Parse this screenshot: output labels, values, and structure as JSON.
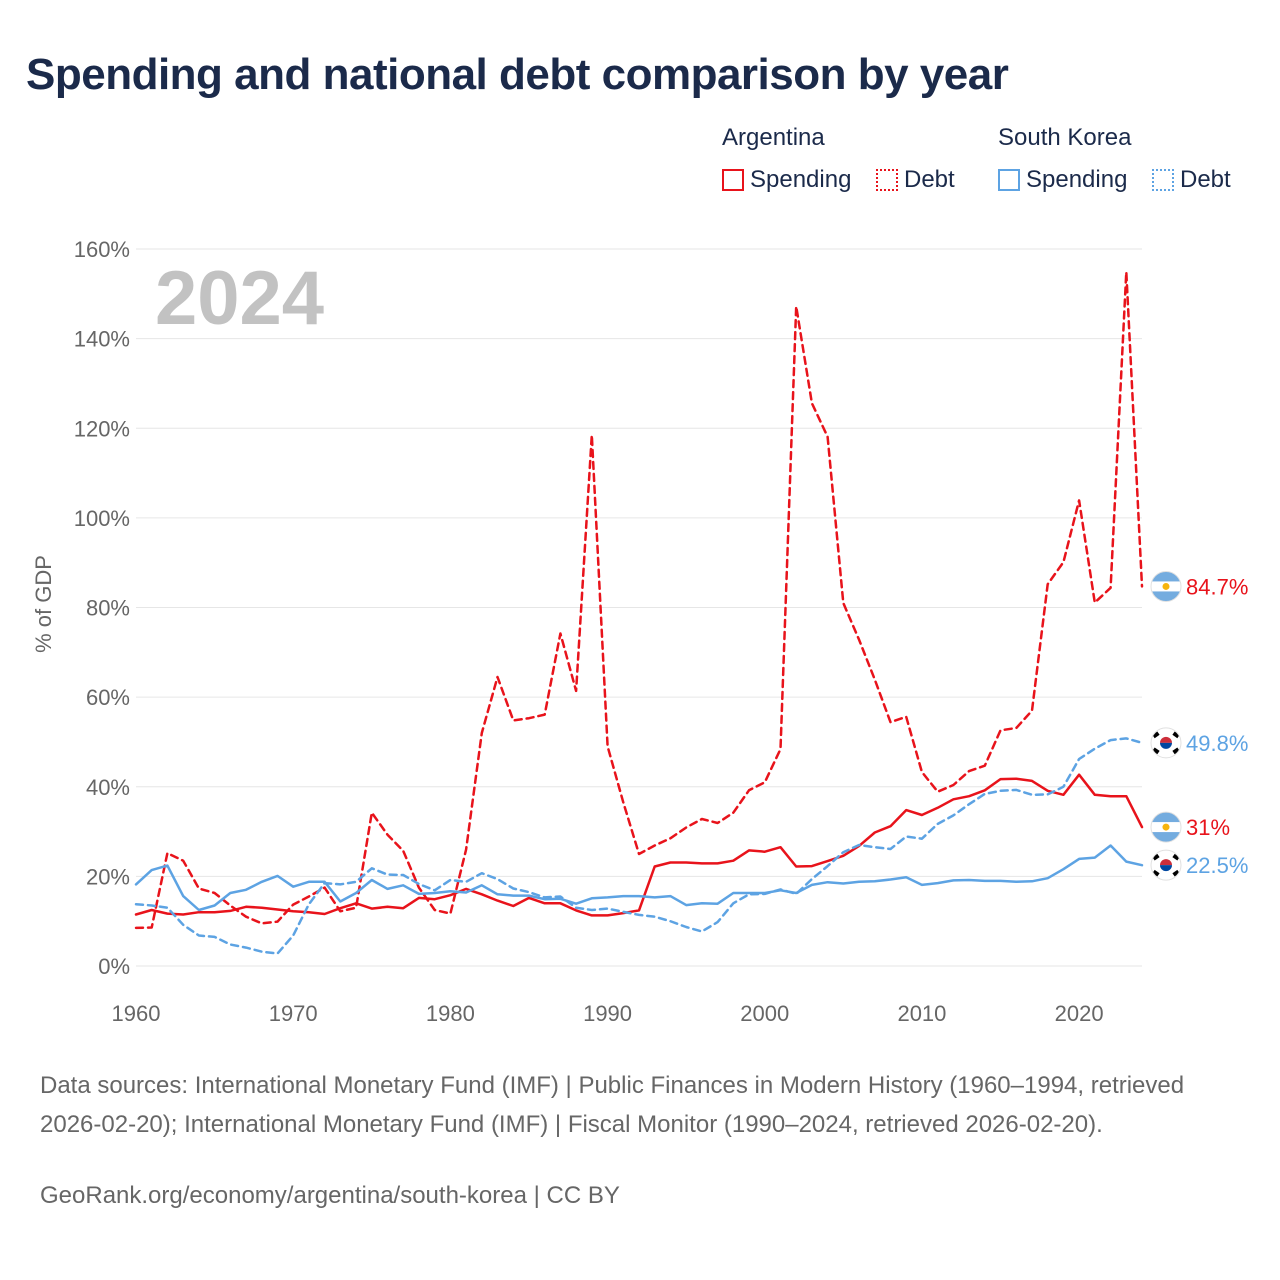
{
  "title": "Spending and national debt comparison by year",
  "legend": {
    "argentina": {
      "label": "Argentina",
      "spending": "Spending",
      "debt": "Debt"
    },
    "south_korea": {
      "label": "South Korea",
      "spending": "Spending",
      "debt": "Debt"
    }
  },
  "colors": {
    "argentina": "#e8131b",
    "south_korea": "#5da3e3",
    "grid": "#e6e6e6",
    "axis_text": "#666666",
    "year_watermark": "#c2c2c2"
  },
  "year_watermark": "2024",
  "end_labels": {
    "argentina_debt": "84.7%",
    "south_korea_debt": "49.8%",
    "argentina_spending": "31%",
    "south_korea_spending": "22.5%"
  },
  "sources": "Data sources: International Monetary Fund (IMF) | Public Finances in Modern History (1960–1994, retrieved 2026-02-20); International Monetary Fund (IMF) | Fiscal Monitor (1990–2024, retrieved 2026-02-20).",
  "credit": "GeoRank.org/economy/argentina/south-korea | CC BY",
  "chart_data": {
    "type": "line",
    "title": "Spending and national debt comparison by year",
    "xlabel": "",
    "ylabel": "% of GDP",
    "xlim": [
      1960,
      2024
    ],
    "ylim": [
      0,
      160
    ],
    "x_ticks": [
      1960,
      1970,
      1980,
      1990,
      2000,
      2010,
      2020
    ],
    "y_ticks": [
      0,
      20,
      40,
      60,
      80,
      100,
      120,
      140,
      160
    ],
    "y_tick_labels": [
      "0%",
      "20%",
      "40%",
      "60%",
      "80%",
      "100%",
      "120%",
      "140%",
      "160%"
    ],
    "grid": true,
    "x": [
      1960,
      1961,
      1962,
      1963,
      1964,
      1965,
      1966,
      1967,
      1968,
      1969,
      1970,
      1971,
      1972,
      1973,
      1974,
      1975,
      1976,
      1977,
      1978,
      1979,
      1980,
      1981,
      1982,
      1983,
      1984,
      1985,
      1986,
      1987,
      1988,
      1989,
      1990,
      1991,
      1992,
      1993,
      1994,
      1995,
      1996,
      1997,
      1998,
      1999,
      2000,
      2001,
      2002,
      2003,
      2004,
      2005,
      2006,
      2007,
      2008,
      2009,
      2010,
      2011,
      2012,
      2013,
      2014,
      2015,
      2016,
      2017,
      2018,
      2019,
      2020,
      2021,
      2022,
      2023,
      2024
    ],
    "series": [
      {
        "name": "Argentina Spending",
        "country": "argentina",
        "style": "solid",
        "values": [
          11.5,
          12.5,
          11.7,
          11.5,
          12,
          12,
          12.3,
          13.2,
          13,
          12.6,
          12.2,
          12,
          11.6,
          12.9,
          14,
          12.8,
          13.2,
          12.9,
          15.2,
          14.9,
          15.8,
          17.2,
          16,
          14.6,
          13.4,
          15.2,
          14,
          14,
          12.4,
          11.3,
          11.3,
          11.8,
          12.4,
          22.2,
          23.1,
          23.1,
          22.9,
          22.9,
          23.5,
          25.8,
          25.5,
          26.5,
          22.2,
          22.3,
          23.4,
          24.6,
          26.8,
          29.8,
          31.2,
          34.8,
          33.7,
          35.3,
          37.2,
          37.9,
          39.2,
          41.7,
          41.8,
          41.3,
          39.1,
          38.2,
          42.7,
          38.2,
          37.9,
          37.9,
          31
        ]
      },
      {
        "name": "Argentina Debt",
        "country": "argentina",
        "style": "dashed",
        "values": [
          8.5,
          8.6,
          25.2,
          23.5,
          17.3,
          16.3,
          13.5,
          11,
          9.5,
          9.9,
          13.7,
          15.5,
          17.5,
          12.2,
          13,
          34.2,
          29.3,
          25.7,
          17.5,
          12.5,
          11.7,
          26,
          52,
          64.5,
          54.8,
          55.3,
          56.1,
          74.2,
          61.4,
          118.5,
          49,
          36.5,
          25,
          26.9,
          28.5,
          30.9,
          32.8,
          31.9,
          34.2,
          39.2,
          41,
          48.4,
          147.2,
          125.6,
          118.1,
          81,
          72.8,
          63.9,
          54.4,
          55.6,
          43.3,
          38.9,
          40.4,
          43.5,
          44.7,
          52.6,
          53.1,
          57,
          85.2,
          90.1,
          103.9,
          81.1,
          84.4,
          154.9,
          84.7
        ]
      },
      {
        "name": "South Korea Spending",
        "country": "south_korea",
        "style": "solid",
        "values": [
          18.2,
          21.4,
          22.4,
          15.6,
          12.5,
          13.5,
          16.3,
          17,
          18.8,
          20.1,
          17.7,
          18.8,
          18.8,
          14.4,
          16.3,
          19.2,
          17.2,
          18,
          16.1,
          16.3,
          16.7,
          16.4,
          18,
          16,
          15.7,
          15.7,
          14.9,
          15,
          13.9,
          15.1,
          15.3,
          15.6,
          15.6,
          15.3,
          15.6,
          13.6,
          14,
          13.9,
          16.3,
          16.3,
          16.3,
          16.9,
          16.3,
          18.1,
          18.7,
          18.4,
          18.8,
          18.9,
          19.3,
          19.8,
          18.1,
          18.5,
          19.1,
          19.2,
          19,
          19,
          18.8,
          18.9,
          19.6,
          21.6,
          23.9,
          24.2,
          26.9,
          23.3,
          22.5
        ]
      },
      {
        "name": "South Korea Debt",
        "country": "south_korea",
        "style": "dashed",
        "values": [
          13.8,
          13.5,
          13,
          9.2,
          6.8,
          6.5,
          4.8,
          4.1,
          3.2,
          2.8,
          6.8,
          13.8,
          18.5,
          18.2,
          18.8,
          21.8,
          20.4,
          20.3,
          18.3,
          16.9,
          19.2,
          18.8,
          20.7,
          19.4,
          17.3,
          16.5,
          15.3,
          15.5,
          13,
          12.5,
          12.8,
          12.1,
          11.4,
          11,
          10,
          8.7,
          7.7,
          9.8,
          14,
          16,
          16.1,
          17.1,
          16.1,
          19.4,
          22.3,
          25.4,
          27,
          26.5,
          26.1,
          28.9,
          28.4,
          31.7,
          33.6,
          36.1,
          38.4,
          39.1,
          39.3,
          38.2,
          38.3,
          40,
          46.2,
          48.5,
          50.4,
          50.8,
          49.8
        ]
      }
    ]
  }
}
